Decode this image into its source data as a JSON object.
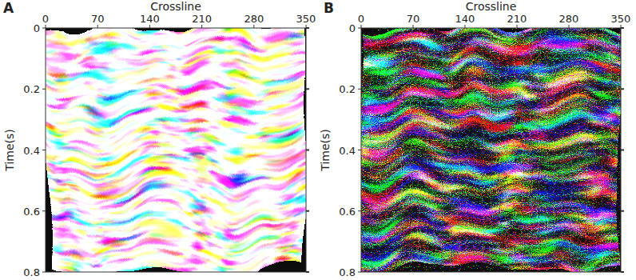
{
  "chart_data": [
    {
      "type": "image",
      "title": "A",
      "x_label": "Crossline",
      "y_label": "Time(s)",
      "xlim": [
        0,
        350
      ],
      "xticks": [
        0,
        70,
        140,
        210,
        280,
        350
      ],
      "ylim": [
        0.8,
        0
      ],
      "yticks": [
        0,
        0.2,
        0.4,
        0.6,
        0.8
      ]
    },
    {
      "type": "image",
      "title": "B",
      "x_label": "Crossline",
      "y_label": "Time(s)",
      "xlim": [
        0,
        350
      ],
      "xticks": [
        0,
        70,
        140,
        210,
        280,
        350
      ],
      "ylim": [
        0.8,
        0
      ],
      "yticks": [
        0,
        0.2,
        0.4,
        0.6,
        0.8
      ]
    }
  ]
}
